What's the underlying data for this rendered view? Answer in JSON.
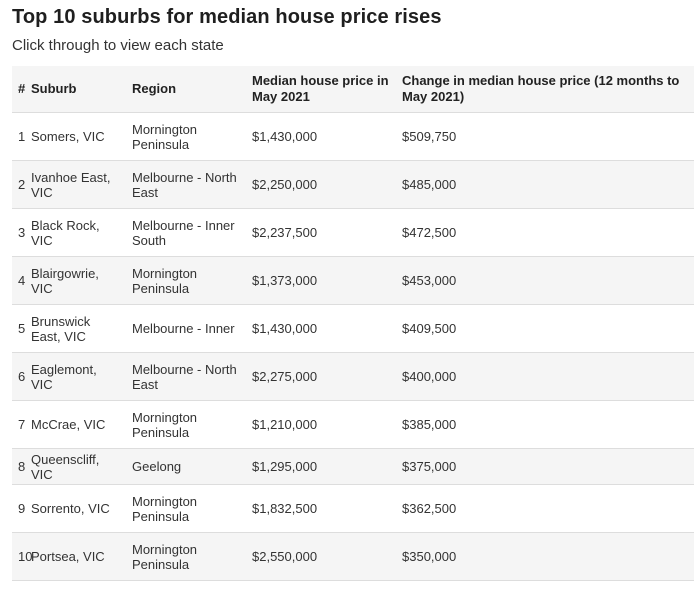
{
  "title": "Top 10 suburbs for median house price rises",
  "subtitle": "Click through to view each state",
  "table": {
    "headers": [
      "#",
      "Suburb",
      "Region",
      "Median house price in May 2021",
      "Change in median house price (12 months to May 2021)"
    ],
    "rows": [
      [
        "1",
        "Somers, VIC",
        "Mornington Peninsula",
        "$1,430,000",
        "$509,750"
      ],
      [
        "2",
        "Ivanhoe East, VIC",
        "Melbourne - North East",
        "$2,250,000",
        "$485,000"
      ],
      [
        "3",
        "Black Rock, VIC",
        "Melbourne - Inner South",
        "$2,237,500",
        "$472,500"
      ],
      [
        "4",
        "Blairgowrie, VIC",
        "Mornington Peninsula",
        "$1,373,000",
        "$453,000"
      ],
      [
        "5",
        "Brunswick East, VIC",
        "Melbourne - Inner",
        "$1,430,000",
        "$409,500"
      ],
      [
        "6",
        "Eaglemont, VIC",
        "Melbourne - North East",
        "$2,275,000",
        "$400,000"
      ],
      [
        "7",
        "McCrae, VIC",
        "Mornington Peninsula",
        "$1,210,000",
        "$385,000"
      ],
      [
        "8",
        "Queenscliff, VIC",
        "Geelong",
        "$1,295,000",
        "$375,000"
      ],
      [
        "9",
        "Sorrento, VIC",
        "Mornington Peninsula",
        "$1,832,500",
        "$362,500"
      ],
      [
        "10",
        "Portsea, VIC",
        "Mornington Peninsula",
        "$2,550,000",
        "$350,000"
      ]
    ]
  }
}
